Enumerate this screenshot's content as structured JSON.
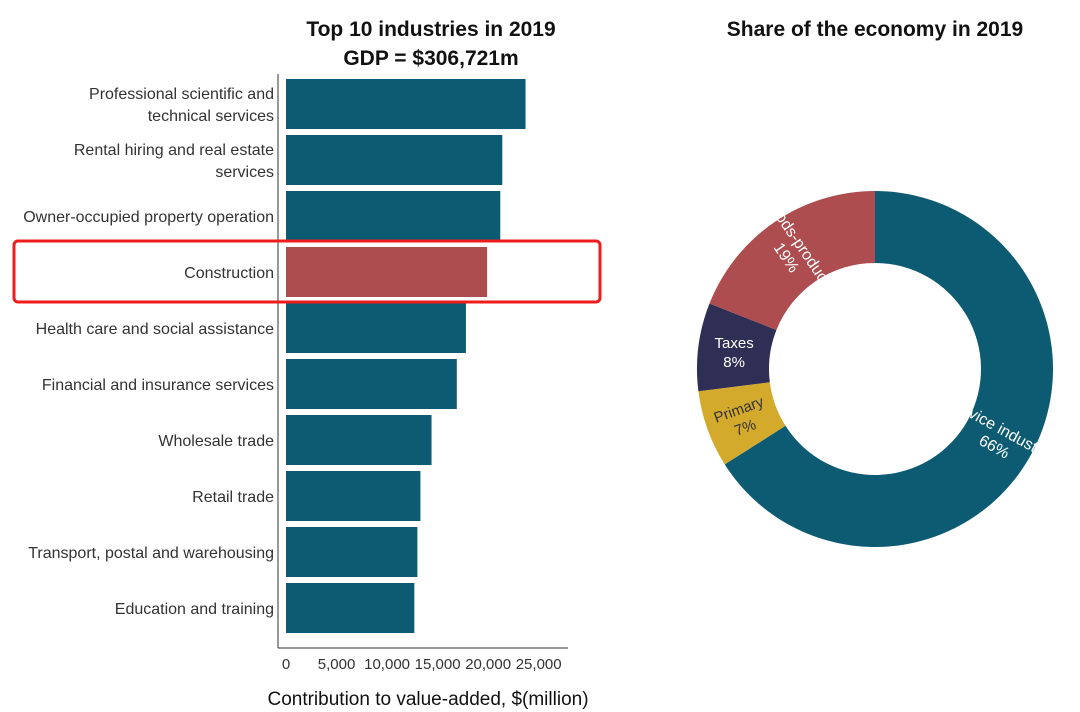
{
  "chart_data": [
    {
      "type": "bar",
      "orientation": "horizontal",
      "title": "Top 10 industries in 2019",
      "subtitle": "GDP = $306,721m",
      "xlabel": "Contribution to value-added, $(million)",
      "ylabel": "",
      "xlim": [
        0,
        25000
      ],
      "ticks": [
        "0",
        "5,000",
        "10,000",
        "15,000",
        "20,000",
        "25,000"
      ],
      "tick_values": [
        0,
        5000,
        10000,
        15000,
        20000,
        25000
      ],
      "categories": [
        {
          "line1": "Professional scientific and",
          "line2": "technical services"
        },
        {
          "line1": "Rental hiring and real estate",
          "line2": "services"
        },
        {
          "line1": "Owner-occupied property operation",
          "line2": ""
        },
        {
          "line1": "Construction",
          "line2": ""
        },
        {
          "line1": "Health care and social assistance",
          "line2": ""
        },
        {
          "line1": "Financial and insurance services",
          "line2": ""
        },
        {
          "line1": "Wholesale trade",
          "line2": ""
        },
        {
          "line1": "Retail trade",
          "line2": ""
        },
        {
          "line1": "Transport, postal and warehousing",
          "line2": ""
        },
        {
          "line1": "Education and training",
          "line2": ""
        }
      ],
      "values": [
        23700,
        21400,
        21200,
        19900,
        17800,
        16900,
        14400,
        13300,
        13000,
        12700
      ],
      "highlight_index": 3,
      "colors": {
        "bar": "#0d5b73",
        "highlight": "#ad4d4f",
        "frame": "#ee1c1c",
        "axis": "#333333"
      }
    },
    {
      "type": "pie",
      "style": "donut",
      "title": "Share of the economy in 2019",
      "slices": [
        {
          "name": "Service industries",
          "pct_label": "66%",
          "value": 66,
          "color": "#0d5b73",
          "text_color": "#ffffff"
        },
        {
          "name": "Primary",
          "pct_label": "7%",
          "value": 7,
          "color": "#d4aa2d",
          "text_color": "#333333"
        },
        {
          "name": "Taxes",
          "pct_label": "8%",
          "value": 8,
          "color": "#2f2e55",
          "text_color": "#ffffff"
        },
        {
          "name": "Goods-producing",
          "pct_label": "19%",
          "value": 19,
          "color": "#ad4d4f",
          "text_color": "#ffffff"
        }
      ]
    }
  ]
}
